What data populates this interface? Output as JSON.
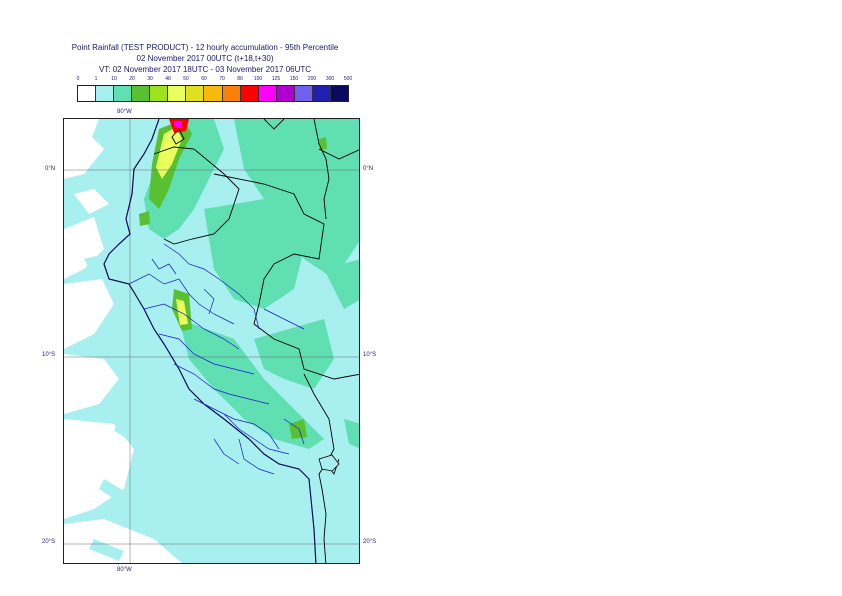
{
  "title": {
    "line1": "Point Rainfall (TEST PRODUCT) - 12 hourly accumulation - 95th Percentile",
    "line2": "02 November 2017 00UTC (t+18,t+30)",
    "line3": "VT: 02 November 2017 18UTC - 03 November 2017 06UTC"
  },
  "legend": {
    "labels": [
      "0",
      "1",
      "10",
      "20",
      "30",
      "40",
      "50",
      "60",
      "70",
      "80",
      "100",
      "125",
      "150",
      "200",
      "300",
      "500"
    ],
    "colors": [
      "#ffffff",
      "#a8efef",
      "#5fdfb2",
      "#59c032",
      "#9de21c",
      "#e9ff5e",
      "#e0e022",
      "#f7b90b",
      "#f7810b",
      "#ff0000",
      "#ff00ff",
      "#b000d0",
      "#7060f0",
      "#2020b0",
      "#0a0a60"
    ]
  },
  "map": {
    "axes": {
      "top_lon": "80°W",
      "bottom_lon": "80°W",
      "left_lat": [
        "0°N",
        "10°S",
        "20°S"
      ],
      "right_lat": [
        "0°N",
        "10°S",
        "20°S"
      ]
    },
    "colors": {
      "ocean_light": "#a8efef",
      "ocean_white": "#ffffff",
      "rain_light": "#a8efef",
      "rain_med": "#5fdfb2",
      "rain_green": "#59c032",
      "rain_yellow": "#e9ff5e",
      "rain_lime": "#9de21c",
      "rain_red": "#ff0000",
      "rain_magenta": "#ff00ff",
      "border_black": "#000000",
      "border_blue": "#1a1ad0",
      "coast": "#0a0a50",
      "grid": "#6a6a6a"
    }
  }
}
